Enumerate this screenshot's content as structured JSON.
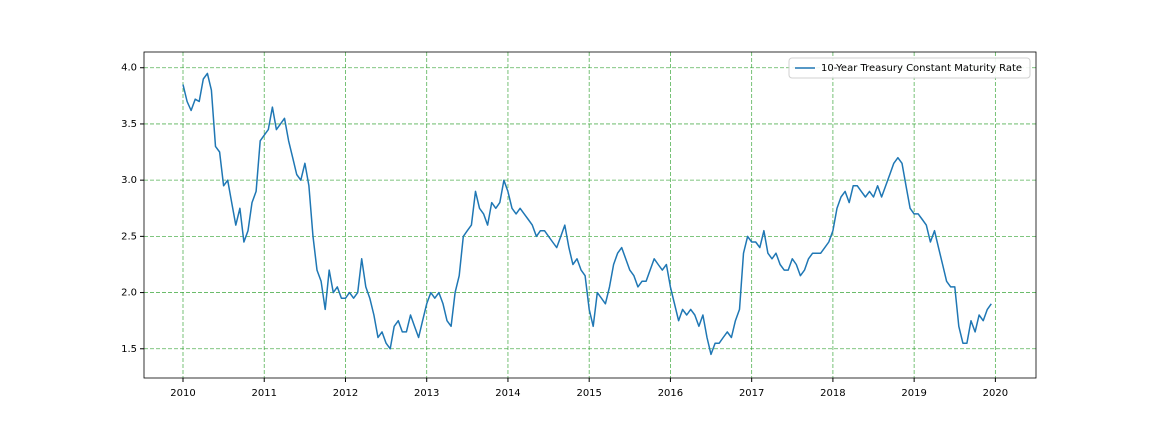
{
  "chart_data": {
    "type": "line",
    "x": [
      2010.0,
      2010.05,
      2010.1,
      2010.15,
      2010.2,
      2010.25,
      2010.3,
      2010.35,
      2010.4,
      2010.45,
      2010.5,
      2010.55,
      2010.6,
      2010.65,
      2010.7,
      2010.75,
      2010.8,
      2010.85,
      2010.9,
      2010.95,
      2011.0,
      2011.05,
      2011.1,
      2011.15,
      2011.2,
      2011.25,
      2011.3,
      2011.35,
      2011.4,
      2011.45,
      2011.5,
      2011.55,
      2011.6,
      2011.65,
      2011.7,
      2011.75,
      2011.8,
      2011.85,
      2011.9,
      2011.95,
      2012.0,
      2012.05,
      2012.1,
      2012.15,
      2012.2,
      2012.25,
      2012.3,
      2012.35,
      2012.4,
      2012.45,
      2012.5,
      2012.55,
      2012.6,
      2012.65,
      2012.7,
      2012.75,
      2012.8,
      2012.85,
      2012.9,
      2012.95,
      2013.0,
      2013.05,
      2013.1,
      2013.15,
      2013.2,
      2013.25,
      2013.3,
      2013.35,
      2013.4,
      2013.45,
      2013.5,
      2013.55,
      2013.6,
      2013.65,
      2013.7,
      2013.75,
      2013.8,
      2013.85,
      2013.9,
      2013.95,
      2014.0,
      2014.05,
      2014.1,
      2014.15,
      2014.2,
      2014.25,
      2014.3,
      2014.35,
      2014.4,
      2014.45,
      2014.5,
      2014.55,
      2014.6,
      2014.65,
      2014.7,
      2014.75,
      2014.8,
      2014.85,
      2014.9,
      2014.95,
      2015.0,
      2015.05,
      2015.1,
      2015.15,
      2015.2,
      2015.25,
      2015.3,
      2015.35,
      2015.4,
      2015.45,
      2015.5,
      2015.55,
      2015.6,
      2015.65,
      2015.7,
      2015.75,
      2015.8,
      2015.85,
      2015.9,
      2015.95,
      2016.0,
      2016.05,
      2016.1,
      2016.15,
      2016.2,
      2016.25,
      2016.3,
      2016.35,
      2016.4,
      2016.45,
      2016.5,
      2016.55,
      2016.6,
      2016.65,
      2016.7,
      2016.75,
      2016.8,
      2016.85,
      2016.9,
      2016.95,
      2017.0,
      2017.05,
      2017.1,
      2017.15,
      2017.2,
      2017.25,
      2017.3,
      2017.35,
      2017.4,
      2017.45,
      2017.5,
      2017.55,
      2017.6,
      2017.65,
      2017.7,
      2017.75,
      2017.8,
      2017.85,
      2017.9,
      2017.95,
      2018.0,
      2018.05,
      2018.1,
      2018.15,
      2018.2,
      2018.25,
      2018.3,
      2018.35,
      2018.4,
      2018.45,
      2018.5,
      2018.55,
      2018.6,
      2018.65,
      2018.7,
      2018.75,
      2018.8,
      2018.85,
      2018.9,
      2018.95,
      2019.0,
      2019.05,
      2019.1,
      2019.15,
      2019.2,
      2019.25,
      2019.3,
      2019.35,
      2019.4,
      2019.45,
      2019.5,
      2019.55,
      2019.6,
      2019.65,
      2019.7,
      2019.75,
      2019.8,
      2019.85,
      2019.9,
      2019.95
    ],
    "series": [
      {
        "name": "10-Year Treasury Constant Maturity Rate",
        "color": "#1f77b4",
        "values": [
          3.85,
          3.7,
          3.62,
          3.72,
          3.7,
          3.9,
          3.95,
          3.8,
          3.3,
          3.25,
          2.95,
          3.0,
          2.8,
          2.6,
          2.75,
          2.45,
          2.55,
          2.8,
          2.9,
          3.35,
          3.4,
          3.45,
          3.65,
          3.45,
          3.5,
          3.55,
          3.35,
          3.2,
          3.05,
          3.0,
          3.15,
          2.95,
          2.5,
          2.2,
          2.1,
          1.85,
          2.2,
          2.0,
          2.05,
          1.95,
          1.95,
          2.0,
          1.95,
          2.0,
          2.3,
          2.05,
          1.95,
          1.8,
          1.6,
          1.65,
          1.55,
          1.5,
          1.7,
          1.75,
          1.65,
          1.65,
          1.8,
          1.7,
          1.6,
          1.75,
          1.9,
          2.0,
          1.95,
          2.0,
          1.9,
          1.75,
          1.7,
          2.0,
          2.15,
          2.5,
          2.55,
          2.6,
          2.9,
          2.75,
          2.7,
          2.6,
          2.8,
          2.75,
          2.8,
          3.0,
          2.9,
          2.75,
          2.7,
          2.75,
          2.7,
          2.65,
          2.6,
          2.5,
          2.55,
          2.55,
          2.5,
          2.45,
          2.4,
          2.5,
          2.6,
          2.4,
          2.25,
          2.3,
          2.2,
          2.15,
          1.85,
          1.7,
          2.0,
          1.95,
          1.9,
          2.05,
          2.25,
          2.35,
          2.4,
          2.3,
          2.2,
          2.15,
          2.05,
          2.1,
          2.1,
          2.2,
          2.3,
          2.25,
          2.2,
          2.25,
          2.05,
          1.9,
          1.75,
          1.85,
          1.8,
          1.85,
          1.8,
          1.7,
          1.8,
          1.6,
          1.45,
          1.55,
          1.55,
          1.6,
          1.65,
          1.6,
          1.75,
          1.85,
          2.35,
          2.5,
          2.45,
          2.45,
          2.4,
          2.55,
          2.35,
          2.3,
          2.35,
          2.25,
          2.2,
          2.2,
          2.3,
          2.25,
          2.15,
          2.2,
          2.3,
          2.35,
          2.35,
          2.35,
          2.4,
          2.45,
          2.55,
          2.75,
          2.85,
          2.9,
          2.8,
          2.95,
          2.95,
          2.9,
          2.85,
          2.9,
          2.85,
          2.95,
          2.85,
          2.95,
          3.05,
          3.15,
          3.2,
          3.15,
          2.95,
          2.75,
          2.7,
          2.7,
          2.65,
          2.6,
          2.45,
          2.55,
          2.4,
          2.25,
          2.1,
          2.05,
          2.05,
          1.7,
          1.55,
          1.55,
          1.75,
          1.65,
          1.8,
          1.75,
          1.85,
          1.9
        ]
      }
    ],
    "xlim": [
      2009.52,
      2020.5
    ],
    "xticks": [
      2010,
      2011,
      2012,
      2013,
      2014,
      2015,
      2016,
      2017,
      2018,
      2019,
      2020
    ],
    "ylim": [
      1.24,
      4.14
    ],
    "yticks": [
      {
        "value": 1.5,
        "label": "1.5"
      },
      {
        "value": 2,
        "label": "2.0"
      },
      {
        "value": 2.5,
        "label": "2.5"
      },
      {
        "value": 3,
        "label": "3.0"
      },
      {
        "value": 3.5,
        "label": "3.5"
      },
      {
        "value": 4,
        "label": "4.0"
      }
    ],
    "grid": true,
    "grid_color": "#2ca02c",
    "legend": "upper right"
  }
}
